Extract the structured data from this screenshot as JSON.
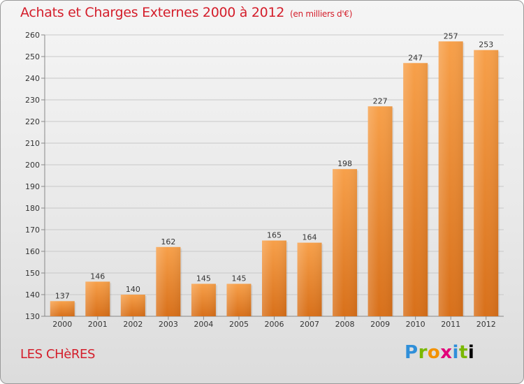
{
  "title": "Achats et Charges Externes 2000 à 2012",
  "subtitle": "(en milliers d'€)",
  "place": "LES CHèRES",
  "logo": [
    "P",
    "r",
    "o",
    "x",
    "i",
    "t",
    "i"
  ],
  "colors": {
    "bar_light": "#f7a04a",
    "bar_dark": "#d8701a",
    "title": "#d41e2b"
  },
  "chart_data": {
    "type": "bar",
    "categories": [
      "2000",
      "2001",
      "2002",
      "2003",
      "2004",
      "2005",
      "2006",
      "2007",
      "2008",
      "2009",
      "2010",
      "2011",
      "2012"
    ],
    "values": [
      137,
      146,
      140,
      162,
      145,
      145,
      165,
      164,
      198,
      227,
      247,
      257,
      253
    ],
    "title": "Achats et Charges Externes 2000 à 2012",
    "subtitle": "(en milliers d'€)",
    "ylim": [
      130,
      260
    ],
    "yticks": [
      130,
      140,
      150,
      160,
      170,
      180,
      190,
      200,
      210,
      220,
      230,
      240,
      250,
      260
    ],
    "grid": true,
    "legend": "none"
  }
}
